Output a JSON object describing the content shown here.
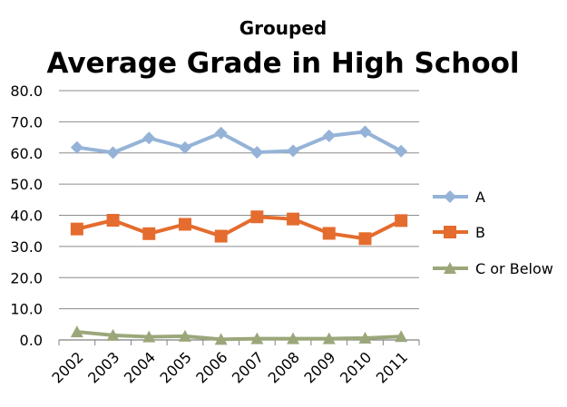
{
  "chart_data": {
    "type": "line",
    "subtitle": "Grouped",
    "title": "Average Grade in High School",
    "categories": [
      "2002",
      "2003",
      "2004",
      "2005",
      "2006",
      "2007",
      "2008",
      "2009",
      "2010",
      "2011"
    ],
    "ylim": [
      0,
      80
    ],
    "yticks": [
      "0.0",
      "10.0",
      "20.0",
      "30.0",
      "40.0",
      "50.0",
      "60.0",
      "70.0",
      "80.0"
    ],
    "grid": true,
    "legend_position": "right",
    "series": [
      {
        "name": "A",
        "color": "#95B3D7",
        "marker": "diamond",
        "values": [
          61.8,
          60.1,
          64.8,
          61.7,
          66.4,
          60.2,
          60.7,
          65.5,
          66.8,
          60.6
        ]
      },
      {
        "name": "B",
        "color": "#E46C2E",
        "marker": "square",
        "values": [
          35.6,
          38.4,
          34.1,
          37.1,
          33.3,
          39.5,
          38.8,
          34.2,
          32.5,
          38.3
        ]
      },
      {
        "name": "C or Below",
        "color": "#9BA77A",
        "marker": "triangle",
        "values": [
          2.6,
          1.5,
          1.0,
          1.2,
          0.2,
          0.4,
          0.4,
          0.4,
          0.6,
          1.1
        ]
      }
    ]
  }
}
